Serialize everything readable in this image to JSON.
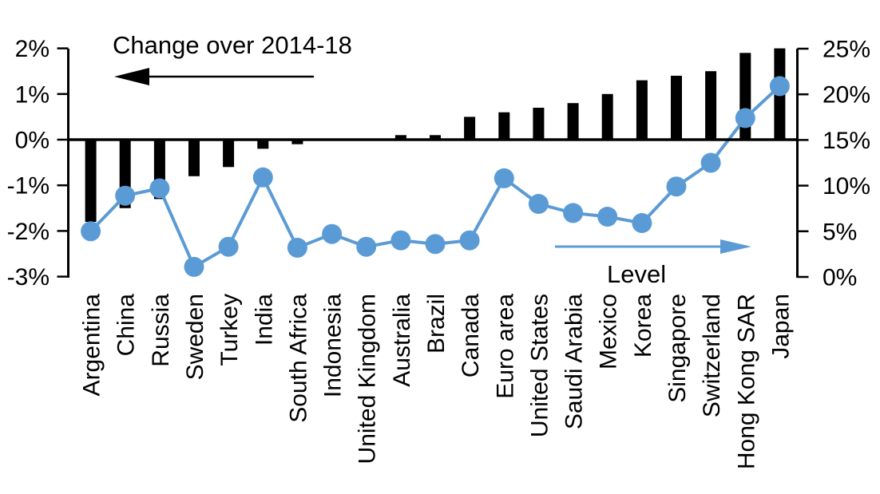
{
  "chart_data": {
    "type": "bar+line",
    "categories": [
      "Argentina",
      "China",
      "Russia",
      "Sweden",
      "Turkey",
      "India",
      "South Africa",
      "Indonesia",
      "United Kingdom",
      "Australia",
      "Brazil",
      "Canada",
      "Euro area",
      "United States",
      "Saudi Arabia",
      "Mexico",
      "Korea",
      "Singapore",
      "Switzerland",
      "Hong Kong SAR",
      "Japan"
    ],
    "series": [
      {
        "name": "Change over 2014-18",
        "type": "bar",
        "axis": "left",
        "color": "#000000",
        "values": [
          -1.8,
          -1.5,
          -1.3,
          -0.8,
          -0.6,
          -0.2,
          -0.1,
          0,
          0,
          0.1,
          0.1,
          0.5,
          0.6,
          0.7,
          0.8,
          1.0,
          1.3,
          1.4,
          1.5,
          1.9,
          2.0
        ]
      },
      {
        "name": "Level",
        "type": "line",
        "axis": "right",
        "color": "#5b9bd5",
        "values": [
          5.0,
          8.9,
          9.7,
          1.1,
          3.3,
          10.9,
          3.2,
          4.7,
          3.3,
          4.0,
          3.6,
          4.0,
          10.8,
          8.0,
          7.0,
          6.6,
          5.9,
          9.9,
          12.5,
          17.4,
          20.9
        ]
      }
    ],
    "left_axis": {
      "min": -3,
      "max": 2,
      "tick_values": [
        2,
        1,
        0,
        -1,
        -2,
        -3
      ],
      "tick_labels": [
        "2%",
        "1%",
        "0%",
        "-1%",
        "-2%",
        "-3%"
      ]
    },
    "right_axis": {
      "min": 0,
      "max": 25,
      "tick_values": [
        25,
        20,
        15,
        10,
        5,
        0
      ],
      "tick_labels": [
        "25%",
        "20%",
        "15%",
        "10%",
        "5%",
        "0%"
      ]
    },
    "annotations": {
      "bar_series_label": "Change over 2014-18",
      "bar_arrow_direction": "left",
      "line_series_label": "Level",
      "line_arrow_direction": "right"
    },
    "grid": "off",
    "legend_position": "in-plot-annotations",
    "background_color": "#ffffff",
    "bar_color": "#000000",
    "line_color": "#5b9bd5"
  }
}
